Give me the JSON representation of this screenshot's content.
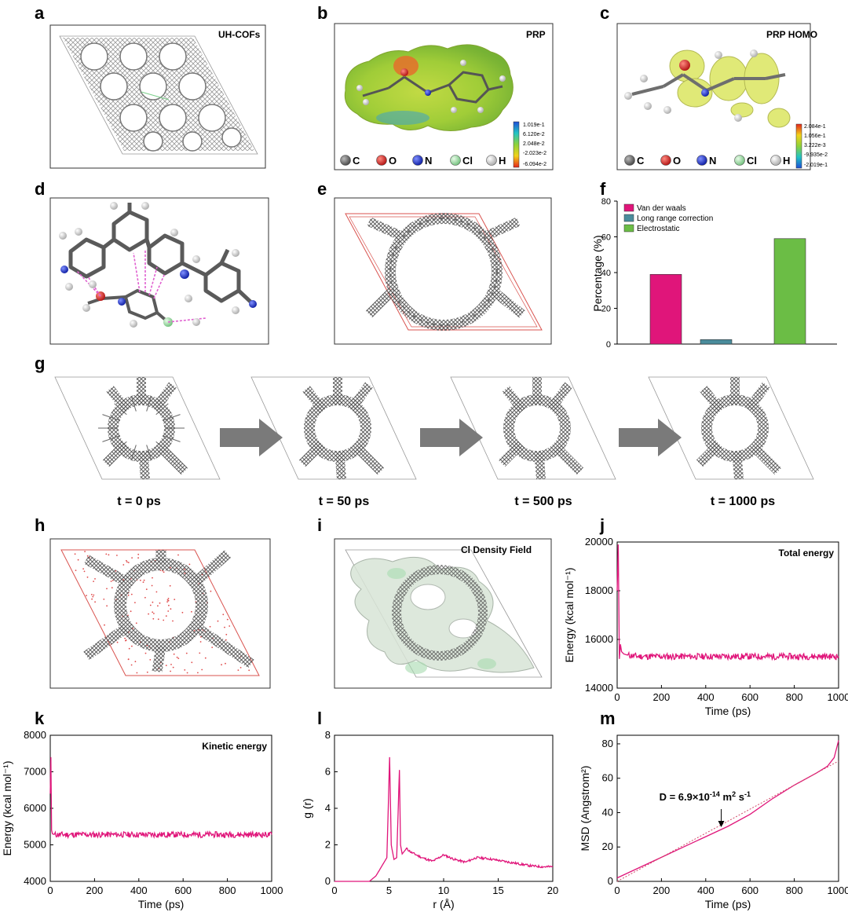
{
  "figure": {
    "panel_letters": [
      "a",
      "b",
      "c",
      "d",
      "e",
      "f",
      "g",
      "h",
      "i",
      "j",
      "k",
      "l",
      "m"
    ],
    "panel_a": {
      "title": "UH-COFs"
    },
    "panel_b": {
      "title": "PRP",
      "colorbar_ticks": [
        "1.019e-1",
        "6.120e-2",
        "2.048e-2",
        "-2.023e-2",
        "-6.094e-2"
      ]
    },
    "panel_c": {
      "title": "PRP HOMO",
      "colorbar_ticks": [
        "2.084e-1",
        "1.056e-1",
        "3.222e-3",
        "-9.935e-2",
        "-2.019e-1"
      ]
    },
    "element_legend": [
      {
        "symbol": "C",
        "color": "#6e6e6e"
      },
      {
        "symbol": "O",
        "color": "#e02020"
      },
      {
        "symbol": "N",
        "color": "#1b2fd0"
      },
      {
        "symbol": "Cl",
        "color": "#a6e3b0"
      },
      {
        "symbol": "H",
        "color": "#eeeeee"
      }
    ],
    "panel_g": {
      "times": [
        "t = 0 ps",
        "t = 50 ps",
        "t = 500 ps",
        "t = 1000 ps"
      ]
    },
    "panel_i": {
      "title": "Cl Density Field"
    },
    "colors": {
      "magenta": "#e0157a",
      "teal": "#4a8c9c",
      "green": "#6bbd45",
      "frame": "#444444",
      "cell": "#d9534f"
    }
  },
  "chart_data": [
    {
      "panel": "f",
      "type": "bar",
      "categories": [
        "Van der waals",
        "Long range correction",
        "Electrostatic"
      ],
      "values": [
        39,
        2.5,
        59
      ],
      "colors": [
        "#e0157a",
        "#4a8c9c",
        "#6bbd45"
      ],
      "ylabel": "Percentage (%)",
      "ylim": [
        0,
        80
      ],
      "yticks": [
        "0",
        "20",
        "40",
        "60",
        "80"
      ],
      "legend": "top-left"
    },
    {
      "panel": "j",
      "type": "line",
      "title": "Total energy",
      "xlabel": "Time (ps)",
      "ylabel": "Energy (kcal mol⁻¹)",
      "xlim": [
        0,
        1000
      ],
      "ylim": [
        14000,
        20000
      ],
      "xticks": [
        "0",
        "200",
        "400",
        "600",
        "800",
        "1000"
      ],
      "yticks": [
        "14000",
        "16000",
        "18000",
        "20000"
      ],
      "x": [
        0,
        5,
        10,
        15,
        20,
        30,
        50,
        100,
        200,
        300,
        400,
        500,
        600,
        700,
        800,
        900,
        1000
      ],
      "y": [
        18000,
        19900,
        15200,
        15800,
        15500,
        15400,
        15350,
        15300,
        15300,
        15300,
        15300,
        15300,
        15300,
        15300,
        15300,
        15300,
        15300
      ]
    },
    {
      "panel": "k",
      "type": "line",
      "title": "Kinetic energy",
      "xlabel": "Time (ps)",
      "ylabel": "Energy (kcal mol⁻¹)",
      "xlim": [
        0,
        1000
      ],
      "ylim": [
        4000,
        8000
      ],
      "xticks": [
        "0",
        "200",
        "400",
        "600",
        "800",
        "1000"
      ],
      "yticks": [
        "4000",
        "5000",
        "6000",
        "7000",
        "8000"
      ],
      "x": [
        0,
        3,
        6,
        10,
        20,
        50,
        100,
        200,
        300,
        400,
        500,
        600,
        700,
        800,
        900,
        1000
      ],
      "y": [
        6400,
        7400,
        5400,
        5300,
        5280,
        5280,
        5280,
        5280,
        5280,
        5280,
        5280,
        5280,
        5280,
        5280,
        5280,
        5280
      ]
    },
    {
      "panel": "l",
      "type": "line",
      "xlabel": "r (Å)",
      "ylabel": "g (r)",
      "xlim": [
        0,
        20
      ],
      "ylim": [
        0,
        8
      ],
      "xticks": [
        "0",
        "5",
        "10",
        "15",
        "20"
      ],
      "yticks": [
        "0",
        "2",
        "4",
        "6",
        "8"
      ],
      "x": [
        0,
        3.2,
        3.8,
        4.3,
        4.8,
        5.05,
        5.2,
        5.45,
        5.7,
        5.95,
        6.05,
        6.2,
        6.6,
        7.0,
        8.0,
        9.0,
        10.0,
        11.0,
        12.0,
        13.0,
        14.0,
        15.0,
        16.0,
        17.0,
        18.0,
        19.0,
        20.0
      ],
      "y": [
        0,
        0,
        0.3,
        0.8,
        1.3,
        6.8,
        2.0,
        1.2,
        1.3,
        6.1,
        2.0,
        1.5,
        1.8,
        1.6,
        1.3,
        1.1,
        1.45,
        1.2,
        1.05,
        1.3,
        1.25,
        1.15,
        1.05,
        0.95,
        0.85,
        0.8,
        0.8
      ]
    },
    {
      "panel": "m",
      "type": "line",
      "xlabel": "Time (ps)",
      "ylabel": "MSD (Angstrom²)",
      "xlim": [
        0,
        1000
      ],
      "ylim": [
        0,
        85
      ],
      "xticks": [
        "0",
        "200",
        "400",
        "600",
        "800",
        "1000"
      ],
      "yticks": [
        "0",
        "20",
        "40",
        "60",
        "80"
      ],
      "annotation": {
        "label": "D = 6.9×10",
        "exponent": "-14",
        "unit": " m",
        "unit_exp": "2",
        "unit_tail": " s",
        "unit_tail_exp": "-1",
        "x": 470,
        "y": 32
      },
      "series": [
        {
          "name": "MSD",
          "x": [
            0,
            100,
            200,
            300,
            400,
            500,
            600,
            700,
            800,
            900,
            950,
            980,
            1000
          ],
          "y": [
            2,
            8,
            14,
            20,
            26,
            32,
            39,
            48,
            56,
            63,
            67,
            72,
            82
          ]
        },
        {
          "name": "fit",
          "x": [
            0,
            1000
          ],
          "y": [
            0,
            70
          ]
        }
      ]
    }
  ]
}
